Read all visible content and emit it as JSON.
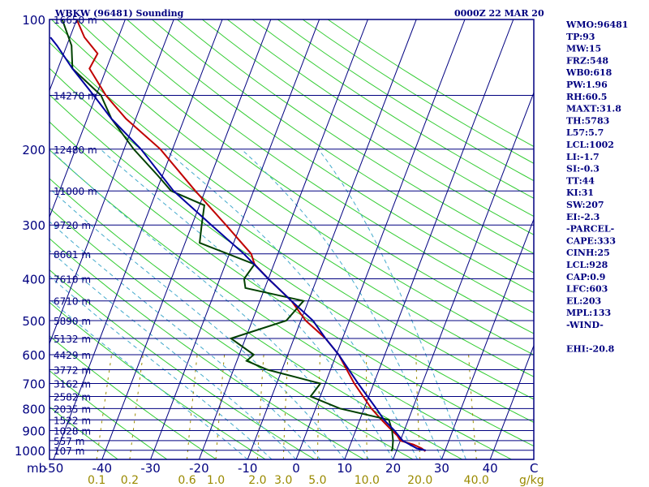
{
  "header": {
    "title": "WBKW (96481) Sounding",
    "time": "0000Z 22 MAR 20"
  },
  "chart_data": {
    "type": "line",
    "pressure_axis": {
      "labels": [
        "100",
        "200",
        "300",
        "400",
        "500",
        "600",
        "700",
        "800",
        "900",
        "1000"
      ],
      "ticks": [
        100,
        200,
        300,
        400,
        500,
        600,
        700,
        800,
        900,
        1000
      ],
      "lim": [
        100,
        1050
      ],
      "scale": "log"
    },
    "temperature_axis": {
      "unit": "C",
      "label_unit": "mb",
      "ticks": [
        -50,
        -40,
        -30,
        -20,
        -10,
        0,
        10,
        20,
        30,
        40
      ],
      "labels": [
        "-50",
        "-40",
        "-30",
        "-20",
        "-10",
        "0",
        "10",
        "20",
        "30",
        "40"
      ]
    },
    "mixing_ratio_axis": {
      "unit": "g/kg",
      "labels": [
        "0.1",
        "0.2",
        "0.6",
        "1.0",
        "2.0",
        "3.0",
        "5.0",
        "10.0",
        "20.0",
        "40.0"
      ]
    },
    "height_labels": [
      {
        "p": 100,
        "text": "16650 m"
      },
      {
        "p": 150,
        "text": "14270 m"
      },
      {
        "p": 200,
        "text": "12480 m"
      },
      {
        "p": 250,
        "text": "11000 m"
      },
      {
        "p": 300,
        "text": "9720 m"
      },
      {
        "p": 350,
        "text": "8601 m"
      },
      {
        "p": 400,
        "text": "7610 m"
      },
      {
        "p": 450,
        "text": "6710 m"
      },
      {
        "p": 500,
        "text": "5890 m"
      },
      {
        "p": 550,
        "text": "5132 m"
      },
      {
        "p": 600,
        "text": "4429 m"
      },
      {
        "p": 650,
        "text": "3772 m"
      },
      {
        "p": 700,
        "text": "3162 m"
      },
      {
        "p": 750,
        "text": "2582 m"
      },
      {
        "p": 800,
        "text": "2035 m"
      },
      {
        "p": 850,
        "text": "1522 m"
      },
      {
        "p": 900,
        "text": "1028 m"
      },
      {
        "p": 950,
        "text": "557 m"
      },
      {
        "p": 1000,
        "text": "107 m"
      }
    ],
    "series": [
      {
        "color": "#c00000",
        "points": [
          [
            1005,
            26
          ],
          [
            990,
            25
          ],
          [
            970,
            23
          ],
          [
            950,
            20
          ],
          [
            925,
            19
          ],
          [
            900,
            17.5
          ],
          [
            850,
            14.5
          ],
          [
            800,
            11.5
          ],
          [
            700,
            6
          ],
          [
            600,
            0.5
          ],
          [
            550,
            -3.5
          ],
          [
            500,
            -9
          ],
          [
            450,
            -13.5
          ],
          [
            400,
            -20
          ],
          [
            370,
            -24
          ],
          [
            350,
            -25.5
          ],
          [
            300,
            -33
          ],
          [
            250,
            -42
          ],
          [
            200,
            -52.5
          ],
          [
            170,
            -62
          ],
          [
            150,
            -68
          ],
          [
            130,
            -73.5
          ],
          [
            120,
            -73
          ],
          [
            110,
            -77
          ],
          [
            100,
            -80
          ]
        ]
      },
      {
        "color": "#004000",
        "points": [
          [
            1005,
            19
          ],
          [
            990,
            19
          ],
          [
            950,
            18.5
          ],
          [
            900,
            17.5
          ],
          [
            850,
            16
          ],
          [
            800,
            5
          ],
          [
            750,
            -2
          ],
          [
            700,
            -1
          ],
          [
            650,
            -13
          ],
          [
            620,
            -18
          ],
          [
            600,
            -17
          ],
          [
            550,
            -23
          ],
          [
            500,
            -13
          ],
          [
            450,
            -11
          ],
          [
            420,
            -24
          ],
          [
            400,
            -25
          ],
          [
            370,
            -24
          ],
          [
            330,
            -37
          ],
          [
            300,
            -38
          ],
          [
            270,
            -39
          ],
          [
            250,
            -47
          ],
          [
            230,
            -51
          ],
          [
            200,
            -58
          ],
          [
            170,
            -65
          ],
          [
            150,
            -69
          ],
          [
            130,
            -77
          ],
          [
            115,
            -79
          ],
          [
            100,
            -83
          ]
        ]
      },
      {
        "color": "#0000a0",
        "points": [
          [
            1000,
            26
          ],
          [
            990,
            24
          ],
          [
            950,
            20.5
          ],
          [
            900,
            18
          ],
          [
            850,
            15
          ],
          [
            800,
            12.5
          ],
          [
            700,
            6.8
          ],
          [
            600,
            0.5
          ],
          [
            550,
            -3.5
          ],
          [
            500,
            -7.5
          ],
          [
            450,
            -13.5
          ],
          [
            400,
            -20
          ],
          [
            350,
            -27
          ],
          [
            300,
            -36
          ],
          [
            250,
            -46.5
          ],
          [
            200,
            -56.5
          ],
          [
            170,
            -65
          ],
          [
            150,
            -70.5
          ],
          [
            130,
            -77
          ],
          [
            115,
            -82
          ],
          [
            110,
            -84
          ]
        ]
      }
    ]
  },
  "indices": [
    "WMO:96481",
    "TP:93",
    "MW:15",
    "FRZ:548",
    "WB0:618",
    "PW:1.96",
    "RH:60.5",
    "MAXT:31.8",
    "TH:5783",
    "L57:5.7",
    "LCL:1002",
    "LI:-1.7",
    "SI:-0.3",
    "TT:44",
    "KI:31",
    "SW:207",
    "EI:-2.3",
    "-PARCEL-",
    "CAPE:333",
    "CINH:25",
    "LCL:928",
    "CAP:0.9",
    "LFC:603",
    "EL:203",
    "MPL:133",
    "-WIND-",
    "",
    "EHI:-20.8"
  ],
  "colors": {
    "frame": "#000080",
    "dry_adiabat": "#33cc33",
    "moist_adiabat": "#44aacc",
    "mixing_ratio": "#9a8a00"
  }
}
